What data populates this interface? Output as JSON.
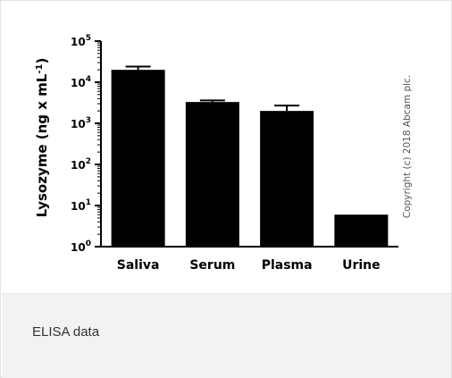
{
  "caption": "ELISA data",
  "copyright": "Copyright (c) 2018 Abcam plc.",
  "colors": {
    "bar": "#000000",
    "axis": "#000000",
    "caption_bg": "#f2f2f2"
  },
  "chart_data": {
    "type": "bar",
    "categories": [
      "Saliva",
      "Serum",
      "Plasma",
      "Urine"
    ],
    "values": [
      20000,
      3300,
      2000,
      6
    ],
    "error_upper": [
      24000,
      3600,
      2700,
      6
    ],
    "ylabel_main": "Lysozyme (ng x mL",
    "ylabel_sup": "-1",
    "ylabel_close": ")",
    "ylim": [
      1,
      100000
    ],
    "yscale": "log",
    "yticks": [
      {
        "base": "10",
        "exp": "0",
        "value": 1
      },
      {
        "base": "10",
        "exp": "1",
        "value": 10
      },
      {
        "base": "10",
        "exp": "2",
        "value": 100
      },
      {
        "base": "10",
        "exp": "3",
        "value": 1000
      },
      {
        "base": "10",
        "exp": "4",
        "value": 10000
      },
      {
        "base": "10",
        "exp": "5",
        "value": 100000
      }
    ],
    "grid": false
  }
}
